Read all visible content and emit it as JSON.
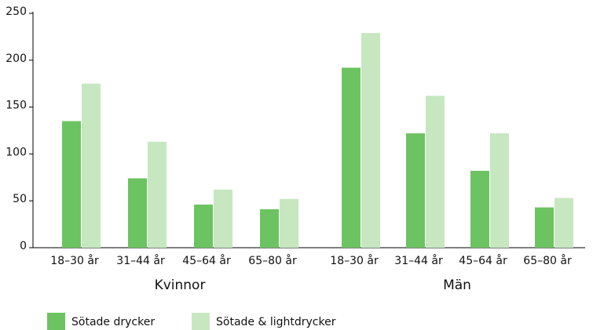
{
  "chart_data": {
    "type": "bar",
    "categories": [
      "18–30 år",
      "31–44 år",
      "45–64 år",
      "65–80 år",
      "18–30 år",
      "31–44 år",
      "45–64 år",
      "65–80 år"
    ],
    "groups": [
      {
        "name": "Kvinnor",
        "size": 4
      },
      {
        "name": "Män",
        "size": 4
      }
    ],
    "series": [
      {
        "name": "Sötade drycker",
        "color": "#6cc361",
        "values": [
          135,
          74,
          46,
          41,
          192,
          122,
          82,
          43
        ]
      },
      {
        "name": "Sötade & lightdrycker",
        "color": "#c6e7c0",
        "values": [
          175,
          113,
          62,
          52,
          229,
          162,
          122,
          53
        ]
      }
    ],
    "ylim": [
      0,
      250
    ],
    "yticks": [
      0,
      50,
      100,
      150,
      200,
      250
    ],
    "grid": false,
    "legend": "bottom"
  }
}
